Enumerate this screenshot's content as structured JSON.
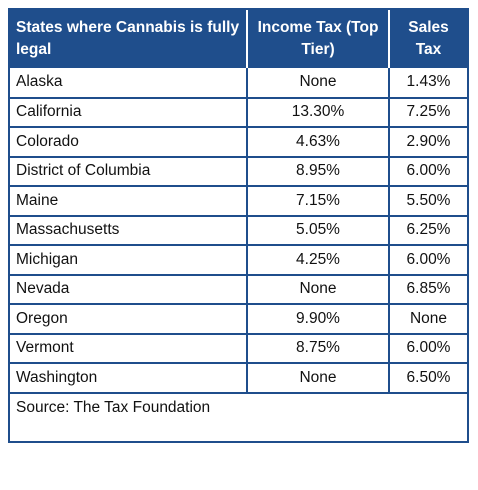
{
  "table": {
    "headers": {
      "state": "States where Cannabis is fully legal",
      "income_tax": "Income Tax (Top Tier)",
      "sales_tax": "Sales Tax"
    },
    "rows": [
      {
        "state": "Alaska",
        "income_tax": "None",
        "sales_tax": "1.43%"
      },
      {
        "state": "California",
        "income_tax": "13.30%",
        "sales_tax": "7.25%"
      },
      {
        "state": "Colorado",
        "income_tax": "4.63%",
        "sales_tax": "2.90%"
      },
      {
        "state": "District of Columbia",
        "income_tax": "8.95%",
        "sales_tax": "6.00%"
      },
      {
        "state": "Maine",
        "income_tax": "7.15%",
        "sales_tax": "5.50%"
      },
      {
        "state": "Massachusetts",
        "income_tax": "5.05%",
        "sales_tax": "6.25%"
      },
      {
        "state": "Michigan",
        "income_tax": "4.25%",
        "sales_tax": "6.00%"
      },
      {
        "state": "Nevada",
        "income_tax": "None",
        "sales_tax": "6.85%"
      },
      {
        "state": "Oregon",
        "income_tax": "9.90%",
        "sales_tax": "None"
      },
      {
        "state": "Vermont",
        "income_tax": "8.75%",
        "sales_tax": "6.00%"
      },
      {
        "state": "Washington",
        "income_tax": "None",
        "sales_tax": "6.50%"
      }
    ],
    "source": "Source: The Tax Foundation"
  },
  "colors": {
    "header_bg": "#1f4e8c",
    "border": "#1f4e8c"
  }
}
